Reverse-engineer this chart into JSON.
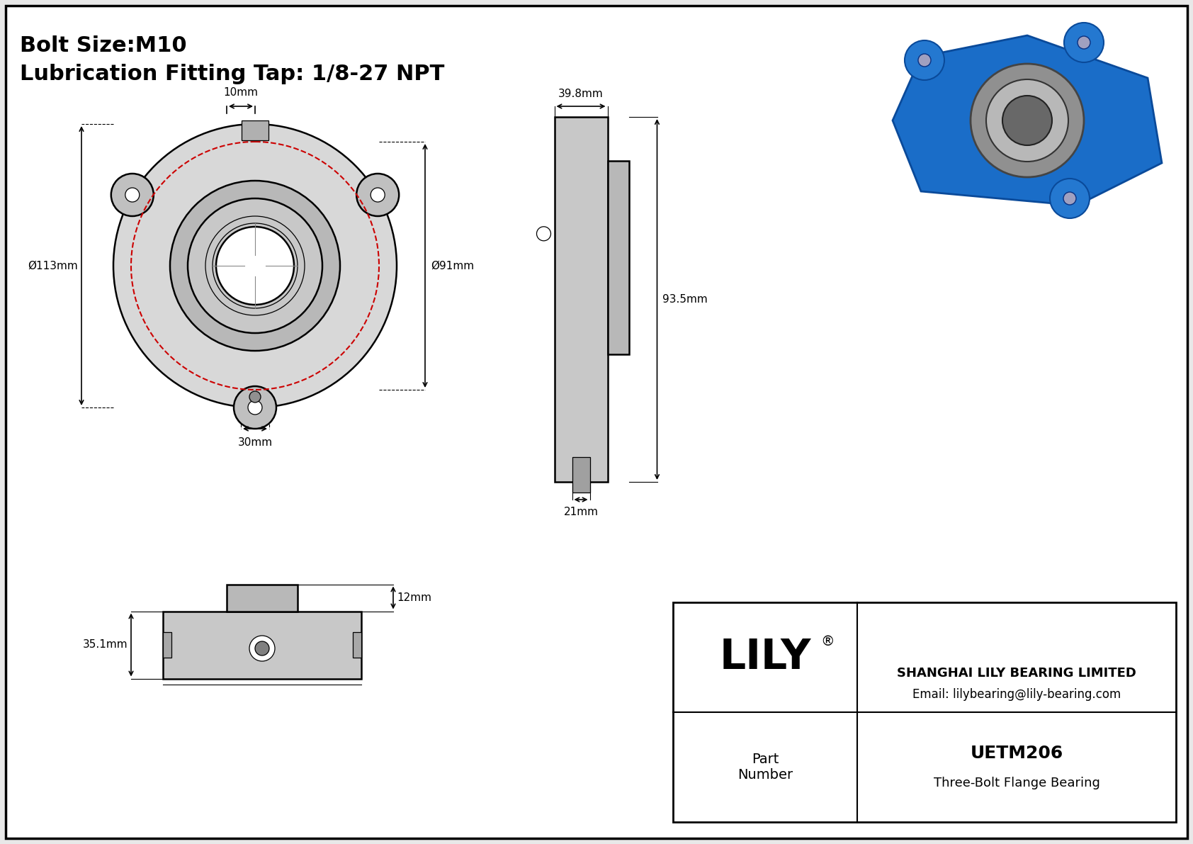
{
  "title_line1": "Bolt Size:M10",
  "title_line2": "Lubrication Fitting Tap: 1/8-27 NPT",
  "bg_color": "#f0f0f0",
  "border_color": "#000000",
  "dim_color": "#000000",
  "dim_red_color": "#cc0000",
  "company": "SHANGHAI LILY BEARING LIMITED",
  "email": "Email: lilybearing@lily-bearing.com",
  "part_label": "Part\nNumber",
  "part_number": "UETM206",
  "part_type": "Three-Bolt Flange Bearing",
  "brand": "LILY",
  "dims": {
    "top_offset": "10mm",
    "left_dia": "Ø113mm",
    "right_dia": "Ø91mm",
    "bottom_offset": "30mm",
    "side_width": "39.8mm",
    "side_height": "93.5mm",
    "side_bottom": "21mm",
    "bottom_height": "35.1mm",
    "bottom_depth": "12mm"
  }
}
